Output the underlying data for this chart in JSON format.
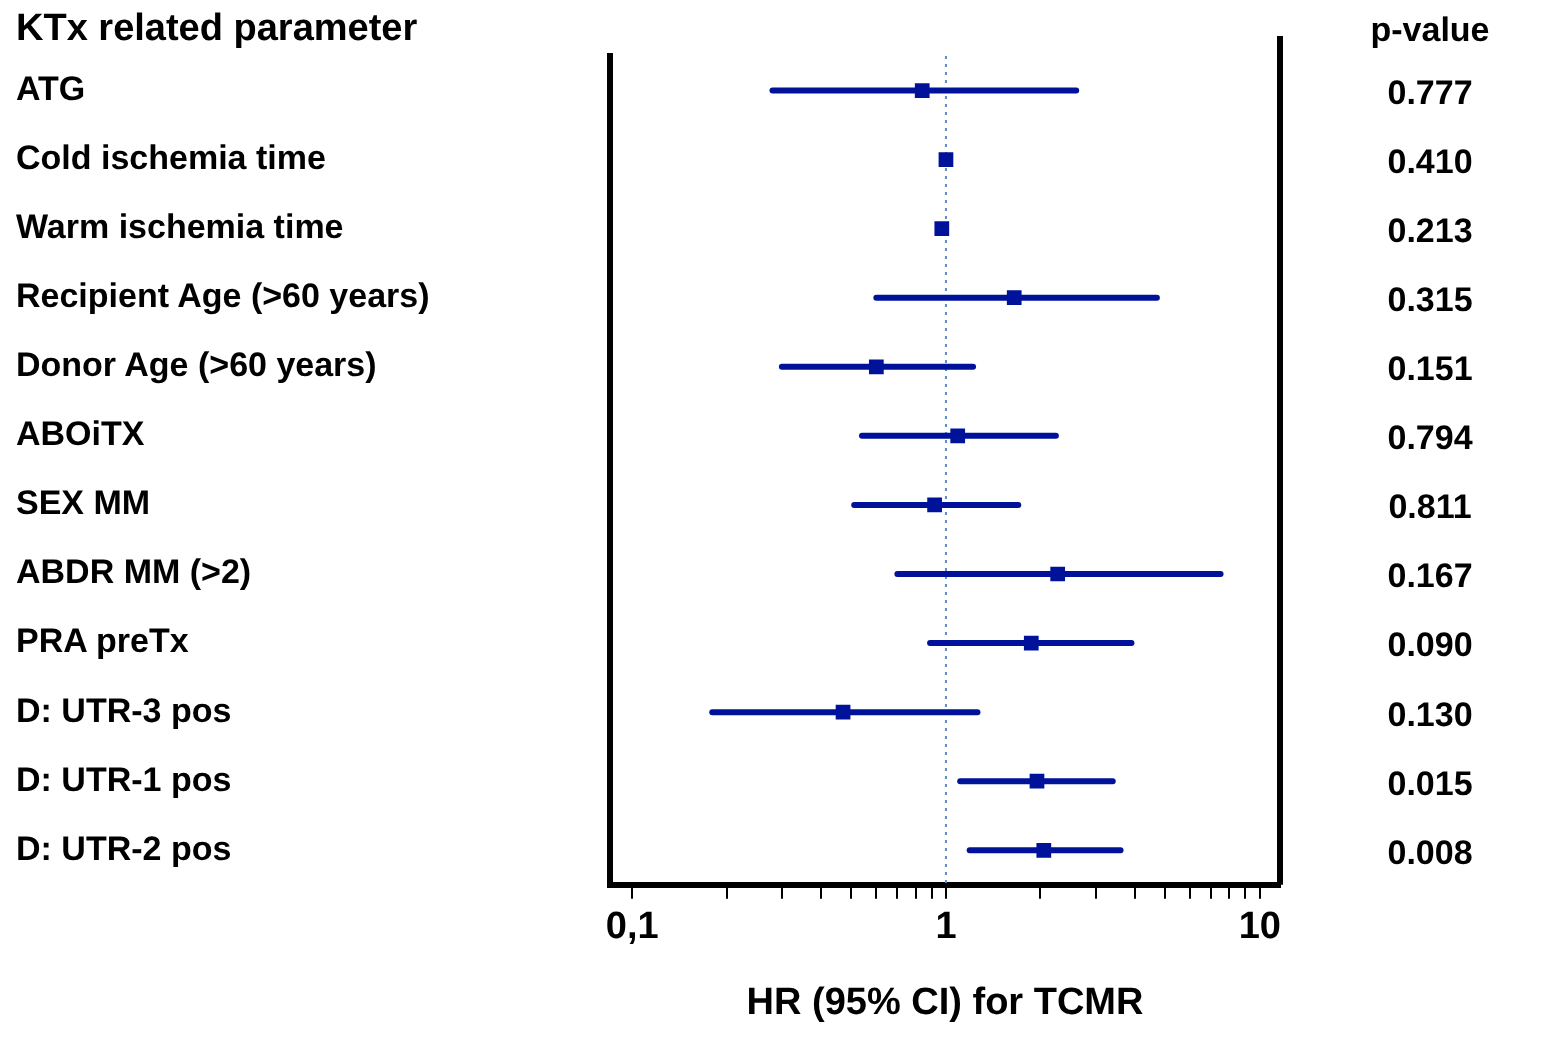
{
  "chart_data": {
    "type": "scatter",
    "title": "KTx related parameter",
    "xlabel": "HR (95% CI) for TCMR",
    "categories": [
      "ATG",
      "Cold ischemia time",
      "Warm ischemia time",
      "Recipient Age (>60 years)",
      "Donor Age (>60 years)",
      "ABOiTX",
      "SEX MM",
      "ABDR MM (>2)",
      "PRA preTx",
      "D: UTR-3 pos",
      "D: UTR-1 pos",
      "D: UTR-2 pos"
    ],
    "series": [
      {
        "color": "#00129a",
        "values": [
          0.84,
          1.0,
          0.97,
          1.65,
          0.6,
          1.09,
          0.92,
          2.27,
          1.87,
          0.47,
          1.95,
          2.05
        ],
        "errors": [
          [
            0.28,
            2.6
          ],
          null,
          null,
          [
            0.6,
            4.7
          ],
          [
            0.3,
            1.22
          ],
          [
            0.54,
            2.24
          ],
          [
            0.51,
            1.7
          ],
          [
            0.7,
            7.5
          ],
          [
            0.89,
            3.9
          ],
          [
            0.18,
            1.26
          ],
          [
            1.11,
            3.4
          ],
          [
            1.19,
            3.6
          ]
        ]
      }
    ],
    "orientation": "horizontal",
    "log": "x",
    "xlim": [
      0.085,
      11.6
    ],
    "xticks": [
      {
        "value": 0.1,
        "label": "0,1"
      },
      {
        "value": 0.2,
        "label": null
      },
      {
        "value": 0.3,
        "label": null
      },
      {
        "value": 0.4,
        "label": null
      },
      {
        "value": 0.5,
        "label": null
      },
      {
        "value": 0.6,
        "label": null
      },
      {
        "value": 0.7,
        "label": null
      },
      {
        "value": 0.8,
        "label": null
      },
      {
        "value": 0.9,
        "label": null
      },
      1,
      {
        "value": 2,
        "label": null
      },
      {
        "value": 3,
        "label": null
      },
      {
        "value": 4,
        "label": null
      },
      {
        "value": 5,
        "label": null
      },
      {
        "value": 6,
        "label": null
      },
      {
        "value": 7,
        "label": null
      },
      {
        "value": 8,
        "label": null
      },
      {
        "value": 9,
        "label": null
      },
      10
    ],
    "ref_lines": [
      {
        "axis": "x",
        "value": 1,
        "color": "#5b8fc7",
        "line_style": "dotted"
      }
    ],
    "marker": "square",
    "grid": false,
    "legend": false,
    "annotations": [
      "p-value",
      "0.777",
      "0.410",
      "0.213",
      "0.315",
      "0.151",
      "0.794",
      "0.811",
      "0.167",
      "0.090",
      "0.130",
      "0.015",
      "0.008"
    ]
  }
}
